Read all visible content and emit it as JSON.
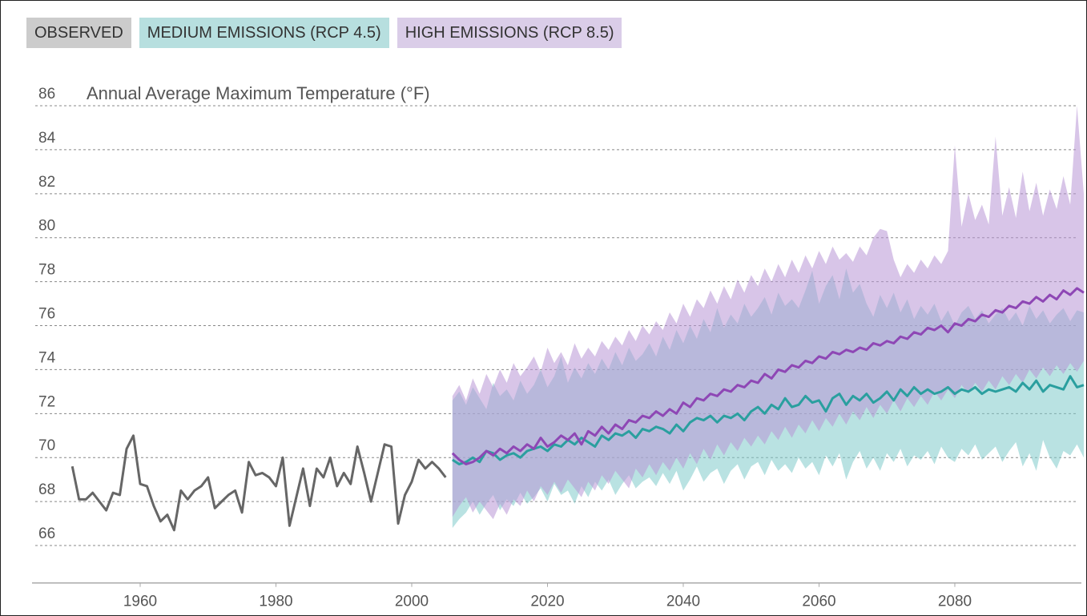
{
  "chart_data": {
    "type": "line",
    "y_label": "Annual Average Maximum Temperature (°F)",
    "xlim": [
      1944,
      2099
    ],
    "xticks": [
      1960,
      1980,
      2000,
      2020,
      2040,
      2060,
      2080
    ],
    "ylim": [
      64.3,
      86.5
    ],
    "yticks": [
      66,
      68,
      70,
      72,
      74,
      76,
      78,
      80,
      82,
      84,
      86
    ],
    "grid": true,
    "series": [
      {
        "name": "OBSERVED",
        "color": "#666666",
        "legend_color": "#cccccc",
        "x": [
          1950,
          1951,
          1952,
          1953,
          1954,
          1955,
          1956,
          1957,
          1958,
          1959,
          1960,
          1961,
          1962,
          1963,
          1964,
          1965,
          1966,
          1967,
          1968,
          1969,
          1970,
          1971,
          1972,
          1973,
          1974,
          1975,
          1976,
          1977,
          1978,
          1979,
          1980,
          1981,
          1982,
          1983,
          1984,
          1985,
          1986,
          1987,
          1988,
          1989,
          1990,
          1991,
          1992,
          1993,
          1994,
          1995,
          1996,
          1997,
          1998,
          1999,
          2000,
          2001,
          2002,
          2003,
          2004,
          2005
        ],
        "values": [
          69.6,
          68.1,
          68.1,
          68.4,
          68.0,
          67.6,
          68.4,
          68.3,
          70.4,
          71.0,
          68.8,
          68.7,
          67.8,
          67.1,
          67.4,
          66.7,
          68.5,
          68.1,
          68.5,
          68.7,
          69.1,
          67.7,
          68.0,
          68.3,
          68.5,
          67.5,
          69.8,
          69.2,
          69.3,
          69.1,
          68.7,
          70.0,
          66.9,
          68.2,
          69.5,
          67.8,
          69.5,
          69.1,
          70.0,
          68.7,
          69.3,
          68.8,
          70.5,
          69.3,
          68.0,
          69.3,
          70.6,
          70.5,
          67.0,
          68.3,
          68.9,
          69.9,
          69.5,
          69.8,
          69.5,
          69.1
        ]
      },
      {
        "name": "MEDIUM EMISSIONS (RCP 4.5)",
        "color": "#2a9f9f",
        "legend_color": "#b7dfdf",
        "band_color": "#7fcaca",
        "x": [
          2006,
          2007,
          2008,
          2009,
          2010,
          2011,
          2012,
          2013,
          2014,
          2015,
          2016,
          2017,
          2018,
          2019,
          2020,
          2021,
          2022,
          2023,
          2024,
          2025,
          2026,
          2027,
          2028,
          2029,
          2030,
          2031,
          2032,
          2033,
          2034,
          2035,
          2036,
          2037,
          2038,
          2039,
          2040,
          2041,
          2042,
          2043,
          2044,
          2045,
          2046,
          2047,
          2048,
          2049,
          2050,
          2051,
          2052,
          2053,
          2054,
          2055,
          2056,
          2057,
          2058,
          2059,
          2060,
          2061,
          2062,
          2063,
          2064,
          2065,
          2066,
          2067,
          2068,
          2069,
          2070,
          2071,
          2072,
          2073,
          2074,
          2075,
          2076,
          2077,
          2078,
          2079,
          2080,
          2081,
          2082,
          2083,
          2084,
          2085,
          2086,
          2087,
          2088,
          2089,
          2090,
          2091,
          2092,
          2093,
          2094,
          2095,
          2096,
          2097,
          2098,
          2099
        ],
        "values": [
          69.9,
          69.7,
          69.8,
          70.0,
          69.8,
          70.3,
          70.2,
          69.9,
          70.1,
          70.2,
          70.0,
          70.3,
          70.4,
          70.5,
          70.3,
          70.6,
          70.5,
          70.8,
          70.6,
          70.9,
          70.7,
          70.5,
          71.0,
          70.8,
          71.1,
          71.0,
          71.2,
          70.9,
          71.3,
          71.2,
          71.4,
          71.3,
          71.1,
          71.5,
          71.2,
          71.6,
          71.8,
          71.7,
          71.9,
          71.6,
          71.9,
          71.8,
          72.0,
          71.7,
          72.1,
          72.3,
          72.0,
          72.4,
          72.2,
          72.7,
          72.3,
          72.4,
          72.8,
          72.5,
          72.6,
          72.1,
          72.7,
          72.9,
          72.4,
          72.8,
          72.6,
          72.9,
          72.5,
          72.7,
          73.0,
          72.6,
          73.1,
          72.8,
          73.2,
          72.9,
          73.1,
          72.9,
          73.0,
          73.2,
          72.9,
          73.1,
          73.0,
          73.2,
          72.9,
          73.1,
          73.0,
          73.1,
          73.2,
          73.0,
          73.4,
          73.1,
          73.5,
          73.0,
          73.3,
          73.2,
          73.1,
          73.7,
          73.2,
          73.3
        ],
        "low": [
          66.8,
          67.2,
          67.5,
          68.0,
          67.4,
          67.9,
          68.3,
          67.6,
          68.1,
          67.8,
          68.4,
          67.9,
          68.2,
          68.6,
          68.0,
          68.8,
          68.3,
          68.5,
          67.9,
          68.7,
          68.2,
          68.9,
          68.5,
          69.0,
          68.3,
          68.8,
          69.2,
          68.6,
          68.9,
          69.1,
          68.7,
          69.3,
          68.8,
          69.4,
          68.5,
          69.0,
          69.6,
          68.9,
          69.3,
          69.5,
          68.8,
          69.4,
          69.7,
          69.0,
          69.6,
          69.8,
          69.2,
          69.9,
          69.4,
          69.7,
          69.3,
          70.0,
          69.5,
          69.8,
          69.2,
          70.1,
          69.6,
          70.2,
          69.0,
          69.8,
          70.3,
          69.5,
          70.0,
          69.4,
          70.2,
          69.8,
          70.4,
          69.6,
          70.1,
          69.9,
          70.3,
          69.7,
          70.5,
          70.0,
          69.8,
          70.4,
          70.1,
          70.6,
          69.9,
          70.2,
          70.5,
          69.8,
          70.3,
          70.7,
          69.6,
          70.2,
          69.4,
          70.8,
          70.0,
          69.5,
          70.3,
          70.1,
          70.6,
          70.0
        ],
        "high": [
          72.6,
          73.0,
          72.4,
          73.2,
          72.7,
          72.2,
          73.4,
          72.8,
          73.1,
          72.6,
          73.5,
          72.9,
          73.3,
          74.0,
          73.2,
          73.7,
          74.6,
          73.4,
          74.1,
          73.6,
          74.3,
          73.8,
          74.5,
          74.0,
          74.8,
          74.2,
          75.0,
          74.4,
          74.7,
          75.2,
          74.6,
          75.5,
          74.9,
          75.8,
          75.2,
          76.0,
          75.4,
          76.3,
          75.7,
          76.8,
          75.9,
          76.5,
          76.1,
          77.0,
          76.4,
          76.8,
          77.3,
          76.5,
          77.5,
          76.9,
          77.2,
          76.8,
          77.6,
          78.5,
          77.0,
          77.8,
          78.3,
          77.2,
          78.6,
          77.5,
          77.9,
          77.0,
          76.4,
          77.4,
          76.8,
          77.5,
          76.6,
          77.2,
          76.3,
          76.9,
          76.5,
          77.0,
          76.2,
          76.7,
          76.0,
          76.6,
          76.9,
          76.3,
          76.7,
          76.1,
          76.5,
          76.8,
          76.2,
          76.6,
          76.0,
          76.9,
          76.3,
          76.7,
          76.1,
          76.5,
          76.8,
          76.2,
          76.7,
          76.6
        ]
      },
      {
        "name": "HIGH EMISSIONS (RCP 8.5)",
        "color": "#8e47b5",
        "legend_color": "#dacde8",
        "band_color": "#b896d6",
        "x": [
          2006,
          2007,
          2008,
          2009,
          2010,
          2011,
          2012,
          2013,
          2014,
          2015,
          2016,
          2017,
          2018,
          2019,
          2020,
          2021,
          2022,
          2023,
          2024,
          2025,
          2026,
          2027,
          2028,
          2029,
          2030,
          2031,
          2032,
          2033,
          2034,
          2035,
          2036,
          2037,
          2038,
          2039,
          2040,
          2041,
          2042,
          2043,
          2044,
          2045,
          2046,
          2047,
          2048,
          2049,
          2050,
          2051,
          2052,
          2053,
          2054,
          2055,
          2056,
          2057,
          2058,
          2059,
          2060,
          2061,
          2062,
          2063,
          2064,
          2065,
          2066,
          2067,
          2068,
          2069,
          2070,
          2071,
          2072,
          2073,
          2074,
          2075,
          2076,
          2077,
          2078,
          2079,
          2080,
          2081,
          2082,
          2083,
          2084,
          2085,
          2086,
          2087,
          2088,
          2089,
          2090,
          2091,
          2092,
          2093,
          2094,
          2095,
          2096,
          2097,
          2098,
          2099
        ],
        "values": [
          70.2,
          69.9,
          69.7,
          69.8,
          70.0,
          70.3,
          70.1,
          70.4,
          70.2,
          70.5,
          70.3,
          70.6,
          70.4,
          70.9,
          70.5,
          70.7,
          71.0,
          70.8,
          71.1,
          70.6,
          71.2,
          71.0,
          71.4,
          71.1,
          71.5,
          71.3,
          71.7,
          71.6,
          71.9,
          71.8,
          72.1,
          71.9,
          72.2,
          72.0,
          72.5,
          72.3,
          72.7,
          72.6,
          72.9,
          72.8,
          73.1,
          73.0,
          73.3,
          73.2,
          73.5,
          73.4,
          73.8,
          73.6,
          74.0,
          73.9,
          74.2,
          74.1,
          74.4,
          74.3,
          74.6,
          74.5,
          74.8,
          74.7,
          74.9,
          74.8,
          75.0,
          74.9,
          75.2,
          75.1,
          75.3,
          75.2,
          75.5,
          75.4,
          75.7,
          75.6,
          75.9,
          75.8,
          76.0,
          75.7,
          76.1,
          76.0,
          76.3,
          76.2,
          76.5,
          76.4,
          76.7,
          76.6,
          76.9,
          76.8,
          77.1,
          77.0,
          77.3,
          77.1,
          77.4,
          77.2,
          77.6,
          77.4,
          77.7,
          77.5
        ],
        "low": [
          67.3,
          67.8,
          68.2,
          67.5,
          68.0,
          67.6,
          67.2,
          67.9,
          67.4,
          68.1,
          67.8,
          68.5,
          68.0,
          68.7,
          68.3,
          68.9,
          68.4,
          69.0,
          68.6,
          68.2,
          68.9,
          68.5,
          69.2,
          68.8,
          69.4,
          69.0,
          68.6,
          69.5,
          69.1,
          69.7,
          69.2,
          69.8,
          69.4,
          70.0,
          69.5,
          70.2,
          69.7,
          70.4,
          69.9,
          70.6,
          70.1,
          70.7,
          70.3,
          70.9,
          70.5,
          71.0,
          70.6,
          71.2,
          70.8,
          71.4,
          70.9,
          71.5,
          71.1,
          71.7,
          71.2,
          71.8,
          71.4,
          72.0,
          71.5,
          72.1,
          71.7,
          72.3,
          71.8,
          72.4,
          72.0,
          72.6,
          72.1,
          72.7,
          72.3,
          72.8,
          72.4,
          73.0,
          72.6,
          73.1,
          72.7,
          73.3,
          72.9,
          73.4,
          73.0,
          73.5,
          73.1,
          73.7,
          73.3,
          73.8,
          73.4,
          74.0,
          73.6,
          74.1,
          73.7,
          74.2,
          73.8,
          74.3,
          73.9,
          74.4
        ],
        "high": [
          72.8,
          73.3,
          72.6,
          73.6,
          72.9,
          73.8,
          73.2,
          74.0,
          73.4,
          74.3,
          73.7,
          74.1,
          74.6,
          73.9,
          75.0,
          74.3,
          74.8,
          74.2,
          75.2,
          74.5,
          75.0,
          74.6,
          75.3,
          74.9,
          75.5,
          75.1,
          75.8,
          75.3,
          76.0,
          75.6,
          76.2,
          75.8,
          76.6,
          76.1,
          77.0,
          76.4,
          77.2,
          76.8,
          77.6,
          77.0,
          77.8,
          77.2,
          78.1,
          77.5,
          78.3,
          77.8,
          78.6,
          78.0,
          78.8,
          78.2,
          79.0,
          78.4,
          79.2,
          78.6,
          79.4,
          78.8,
          79.6,
          79.0,
          79.3,
          78.9,
          79.6,
          79.2,
          80.0,
          80.4,
          80.3,
          79.0,
          78.2,
          78.8,
          78.4,
          79.0,
          78.6,
          79.2,
          78.8,
          79.4,
          84.2,
          80.5,
          82.0,
          80.8,
          81.5,
          80.6,
          84.6,
          81.0,
          82.3,
          80.9,
          83.0,
          81.2,
          82.5,
          81.0,
          82.2,
          81.3,
          82.8,
          81.5,
          86.0,
          82.0
        ]
      }
    ]
  }
}
